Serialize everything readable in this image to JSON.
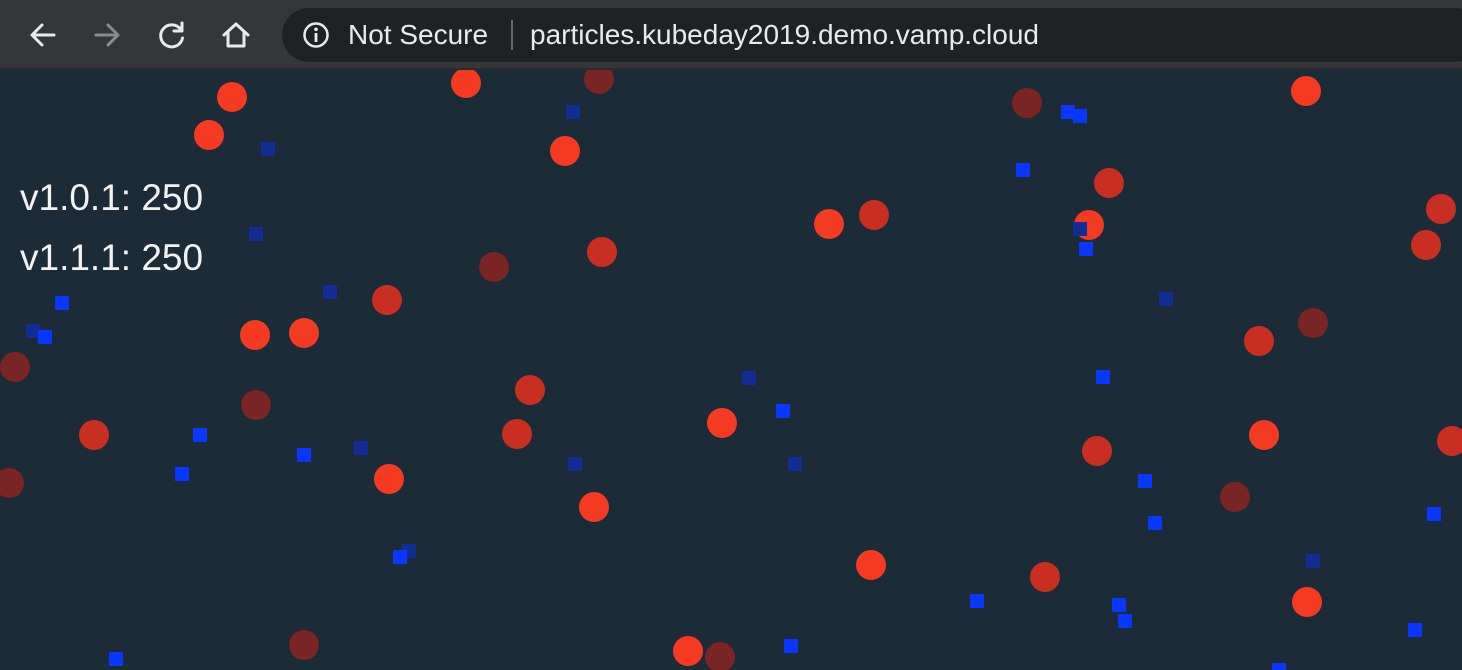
{
  "browser": {
    "security_label": "Not Secure",
    "url": "particles.kubeday2019.demo.vamp.cloud",
    "icons": [
      "back-arrow-icon",
      "forward-arrow-icon",
      "reload-icon",
      "home-icon",
      "info-icon"
    ]
  },
  "page": {
    "counters": [
      {
        "label": "v1.0.1: 250"
      },
      {
        "label": "v1.1.1: 250"
      }
    ],
    "colors": {
      "background": "#1c2b38",
      "circle_bright": "#f53a22",
      "circle_mid": "#c92f20",
      "circle_dim": "#7a2423",
      "square_bright": "#0a37ff",
      "square_dim": "#122e96"
    }
  }
}
